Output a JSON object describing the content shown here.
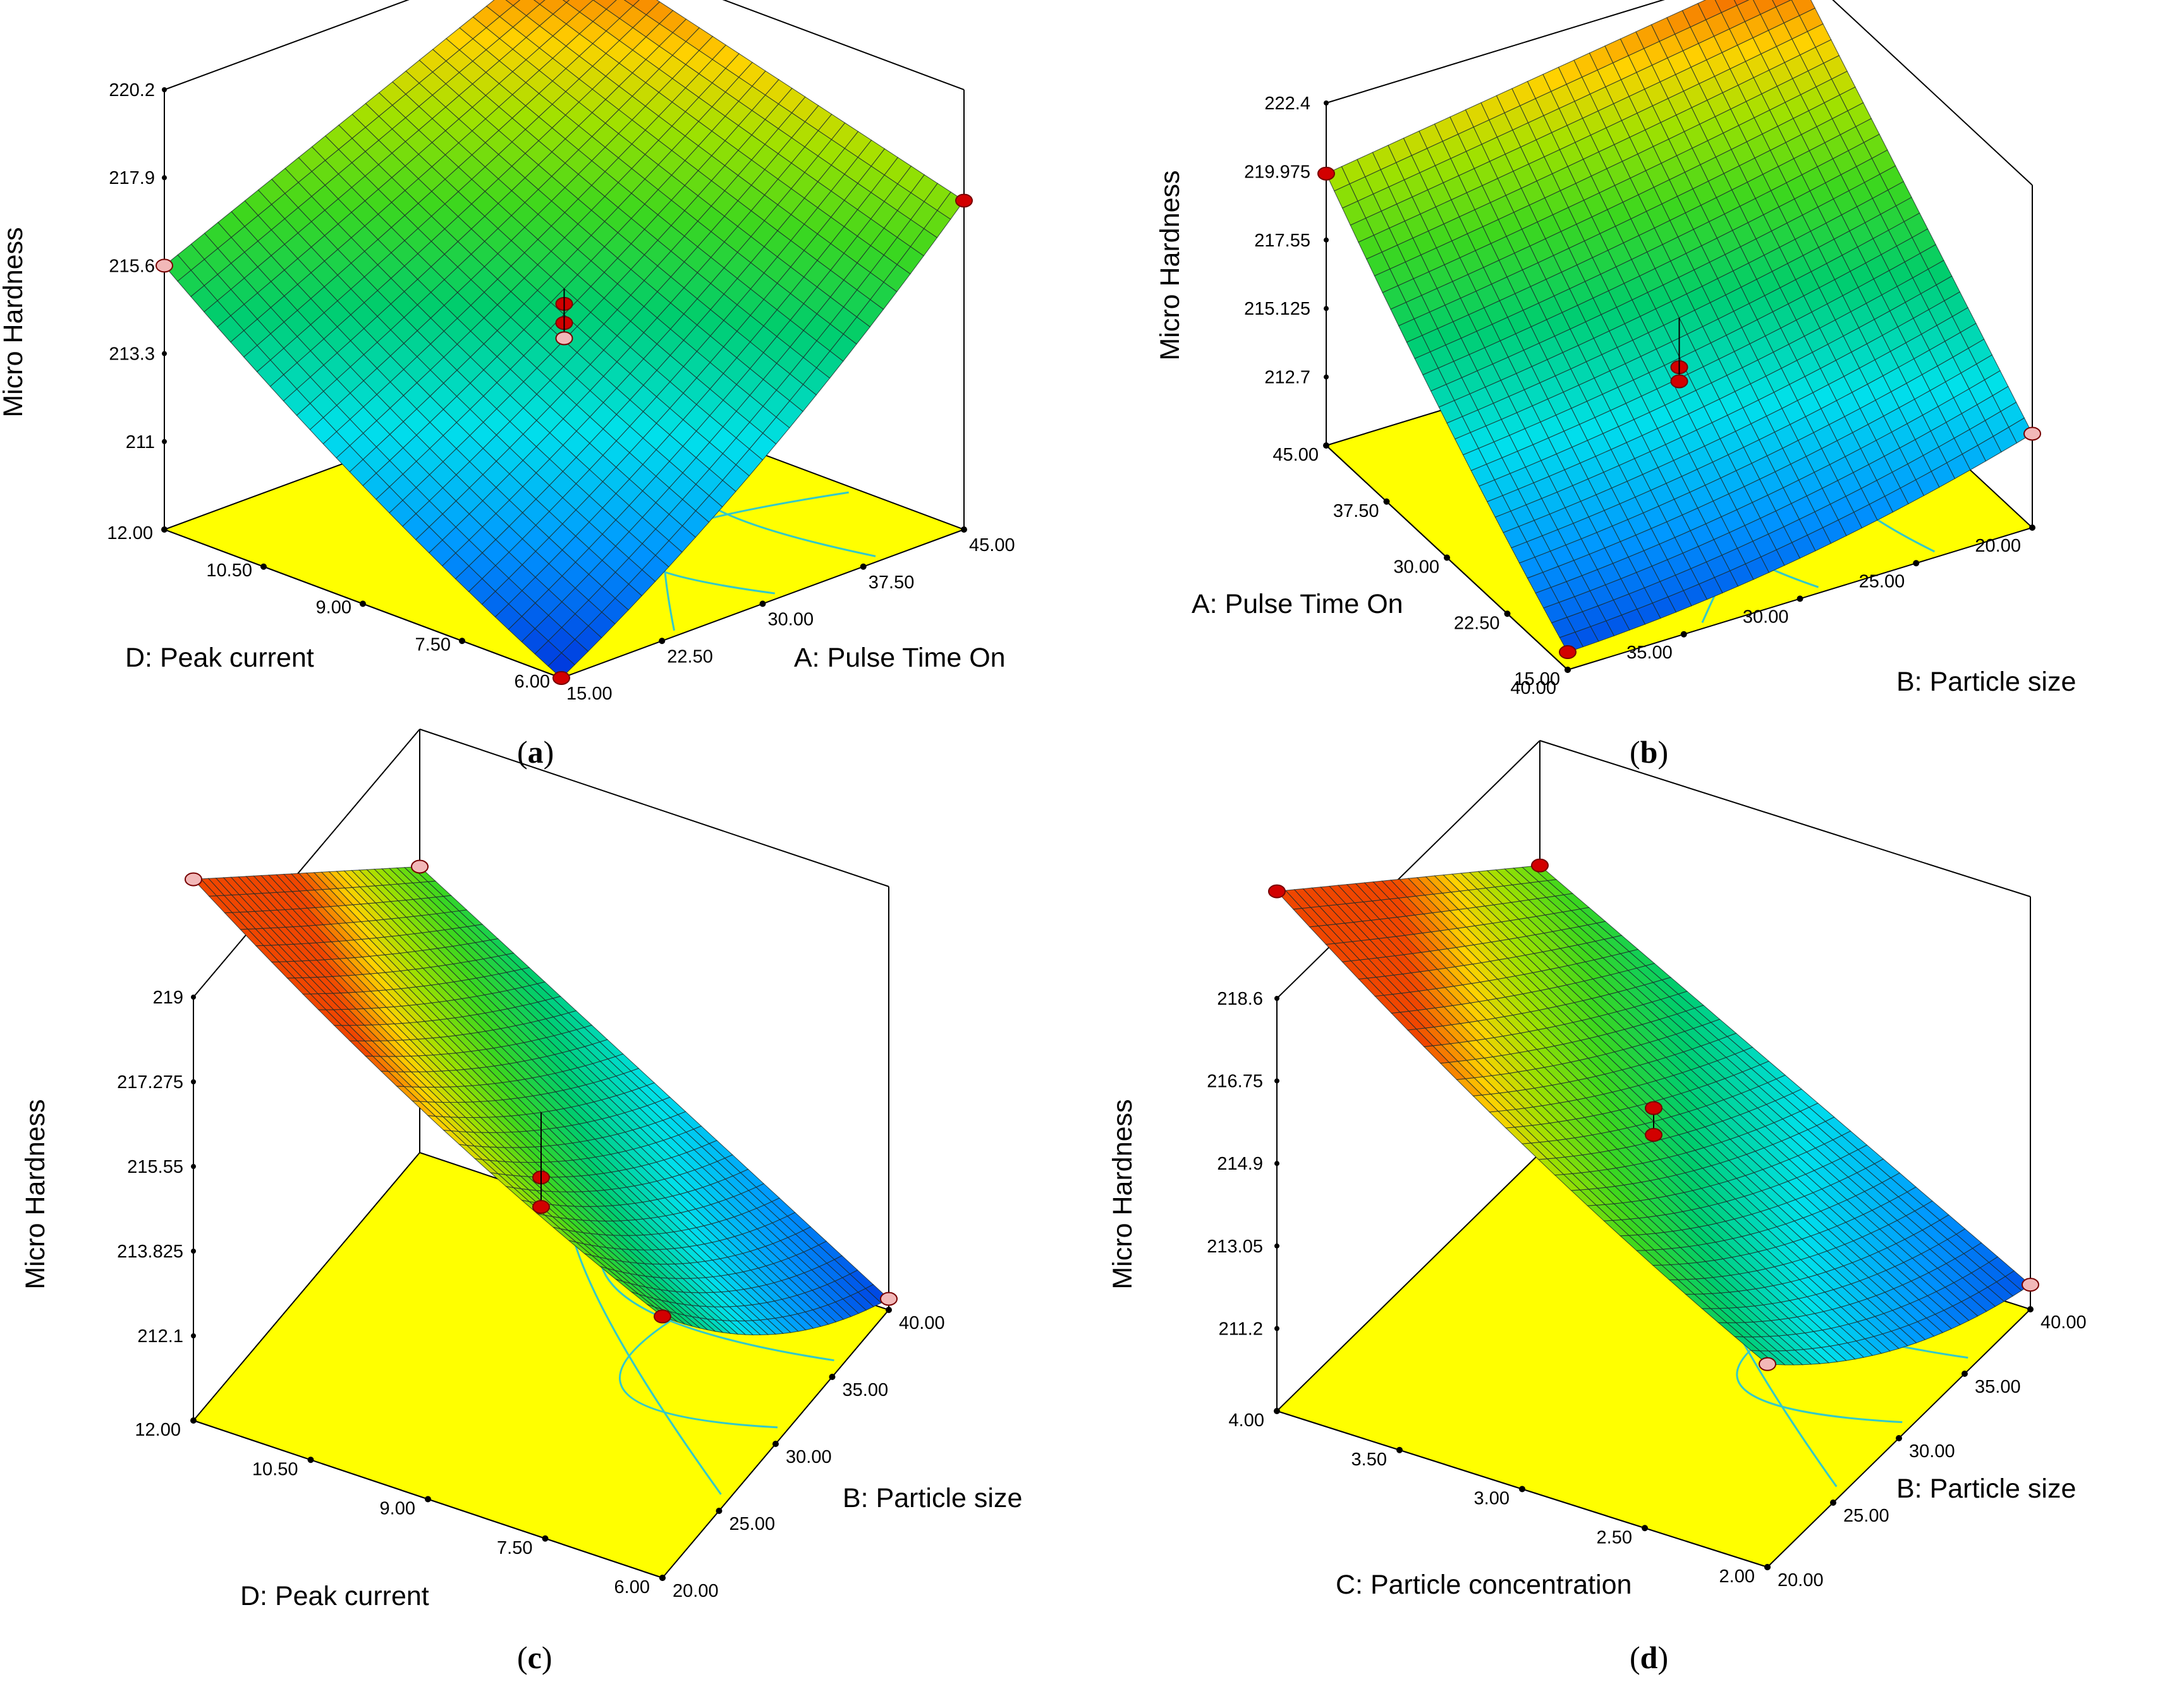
{
  "figure": {
    "colors": {
      "floor": "#ffff00",
      "contour": "#33c9c9",
      "point_high": "#d20000",
      "point_low": "#f2b8b8",
      "grid": "#1a2a2a"
    }
  },
  "panels": [
    {
      "caption_letter": "a",
      "chart_data": {
        "type": "surface",
        "zlabel": "Micro Hardness",
        "z_ticks": [
          "220.2",
          "217.9",
          "215.6",
          "213.3",
          "211"
        ],
        "zlim": [
          208.7,
          220.2
        ],
        "x_axis": {
          "label": "A: Pulse Time On",
          "ticks": [
            "15.00",
            "22.50",
            "30.00",
            "37.50",
            "45.00"
          ],
          "range": [
            15,
            45
          ]
        },
        "y_axis": {
          "label": "D: Peak current",
          "ticks": [
            "6.00",
            "7.50",
            "9.00",
            "10.50",
            "12.00"
          ],
          "range": [
            6,
            12
          ]
        },
        "corners": {
          "x_min_y_min": 208.7,
          "x_max_y_min": 217.3,
          "x_min_y_max": 215.6,
          "x_max_y_max": 220.2
        },
        "design_points": [
          {
            "x": 30,
            "y": 9,
            "z": 214.6,
            "kind": "above"
          },
          {
            "x": 30,
            "y": 9,
            "z": 214.1,
            "kind": "above"
          },
          {
            "x": 30,
            "y": 9,
            "z": 213.7,
            "kind": "below"
          },
          {
            "x": 15,
            "y": 6,
            "z": 208.7,
            "kind": "above"
          },
          {
            "x": 45,
            "y": 6,
            "z": 217.3,
            "kind": "above"
          },
          {
            "x": 15,
            "y": 12,
            "z": 215.6,
            "kind": "below"
          }
        ]
      }
    },
    {
      "caption_letter": "b",
      "chart_data": {
        "type": "surface",
        "zlabel": "Micro Hardness",
        "z_ticks": [
          "222.4",
          "219.975",
          "217.55",
          "215.125",
          "212.7"
        ],
        "zlim": [
          210.275,
          222.4
        ],
        "x_axis": {
          "label": "B: Particle size",
          "ticks": [
            "40.00",
            "35.00",
            "30.00",
            "25.00",
            "20.00"
          ],
          "range": [
            40,
            20
          ]
        },
        "y_axis": {
          "label": "A: Pulse Time On",
          "ticks": [
            "15.00",
            "22.50",
            "30.00",
            "37.50",
            "45.00"
          ],
          "range": [
            15,
            45
          ]
        },
        "corners": {
          "x_min_y_min": 210.9,
          "x_max_y_min": 213.6,
          "x_min_y_max": 219.9,
          "x_max_y_max": 222.4
        },
        "design_points": [
          {
            "x": 30,
            "y": 30,
            "z": 214.5,
            "kind": "above"
          },
          {
            "x": 30,
            "y": 30,
            "z": 214.0,
            "kind": "above"
          },
          {
            "x": 40,
            "y": 15,
            "z": 210.9,
            "kind": "above"
          },
          {
            "x": 40,
            "y": 45,
            "z": 219.9,
            "kind": "above"
          },
          {
            "x": 20,
            "y": 45,
            "z": 222.4,
            "kind": "above"
          },
          {
            "x": 20,
            "y": 15,
            "z": 213.6,
            "kind": "below"
          }
        ]
      }
    },
    {
      "caption_letter": "c",
      "chart_data": {
        "type": "surface",
        "zlabel": "Micro Hardness",
        "z_ticks": [
          "219",
          "217.275",
          "215.55",
          "213.825",
          "212.1"
        ],
        "zlim": [
          210.375,
          219
        ],
        "x_axis": {
          "label": "B: Particle size",
          "ticks": [
            "20.00",
            "25.00",
            "30.00",
            "35.00",
            "40.00"
          ],
          "range": [
            20,
            40
          ]
        },
        "y_axis": {
          "label": "D: Peak current",
          "ticks": [
            "6.00",
            "7.50",
            "9.00",
            "10.50",
            "12.00"
          ],
          "range": [
            6,
            12
          ]
        },
        "corners": {
          "x_min_y_min": 215.7,
          "x_max_y_min": 210.6,
          "x_min_y_max": 221.4,
          "x_max_y_max": 216.2
        },
        "design_points": [
          {
            "x": 30,
            "y": 9,
            "z": 214.2,
            "kind": "above"
          },
          {
            "x": 30,
            "y": 9,
            "z": 213.6,
            "kind": "above"
          },
          {
            "x": 20,
            "y": 6,
            "z": 215.7,
            "kind": "above"
          },
          {
            "x": 40,
            "y": 6,
            "z": 210.6,
            "kind": "below"
          },
          {
            "x": 20,
            "y": 12,
            "z": 221.4,
            "kind": "below"
          },
          {
            "x": 40,
            "y": 12,
            "z": 216.2,
            "kind": "below"
          }
        ]
      }
    },
    {
      "caption_letter": "d",
      "chart_data": {
        "type": "surface",
        "zlabel": "Micro Hardness",
        "z_ticks": [
          "218.6",
          "216.75",
          "214.9",
          "213.05",
          "211.2"
        ],
        "zlim": [
          209.35,
          218.6
        ],
        "x_axis": {
          "label": "B: Particle size",
          "ticks": [
            "20.00",
            "25.00",
            "30.00",
            "35.00",
            "40.00"
          ],
          "range": [
            20,
            40
          ]
        },
        "y_axis": {
          "label": "C: Particle concentration",
          "ticks": [
            "2.00",
            "2.50",
            "3.00",
            "3.50",
            "4.00"
          ],
          "range": [
            2,
            4
          ]
        },
        "corners": {
          "x_min_y_min": 213.9,
          "x_max_y_min": 209.9,
          "x_min_y_max": 221.0,
          "x_max_y_max": 215.8
        },
        "design_points": [
          {
            "x": 30,
            "y": 3,
            "z": 215.0,
            "kind": "above"
          },
          {
            "x": 30,
            "y": 3,
            "z": 214.4,
            "kind": "above"
          },
          {
            "x": 20,
            "y": 4,
            "z": 221.0,
            "kind": "above"
          },
          {
            "x": 40,
            "y": 4,
            "z": 215.8,
            "kind": "above"
          },
          {
            "x": 20,
            "y": 2,
            "z": 213.9,
            "kind": "below"
          },
          {
            "x": 40,
            "y": 2,
            "z": 209.9,
            "kind": "below"
          }
        ]
      }
    }
  ]
}
